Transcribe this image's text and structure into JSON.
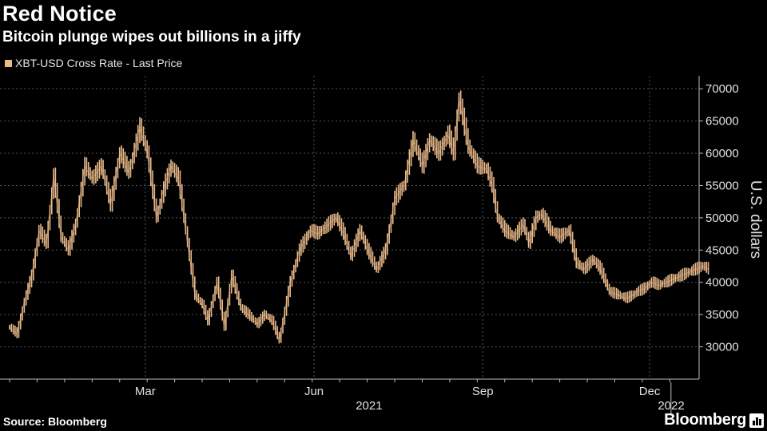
{
  "header": {
    "title": "Red Notice",
    "subtitle": "Bitcoin plunge wipes out billions in a jiffy",
    "legend_label": "XBT-USD Cross Rate - Last Price"
  },
  "footer": {
    "source": "Source: Bloomberg",
    "brand": "Bloomberg"
  },
  "colors": {
    "background": "#000000",
    "series": "#e9b98a",
    "grid": "#555555",
    "text": "#e0e0e0"
  },
  "chart_data": {
    "type": "line",
    "title": "Bitcoin plunge wipes out billions in a jiffy",
    "ylabel": "U.S. dollars",
    "xlabel": "",
    "ylim": [
      25000,
      72000
    ],
    "yticks": [
      30000,
      35000,
      40000,
      45000,
      50000,
      55000,
      60000,
      65000,
      70000
    ],
    "xlim_days": [
      0,
      369
    ],
    "month_ticks": [
      {
        "label": "Mar",
        "day": 74
      },
      {
        "label": "Jun",
        "day": 166
      },
      {
        "label": "Sep",
        "day": 258
      },
      {
        "label": "Dec",
        "day": 349
      }
    ],
    "year_labels": [
      {
        "label": "2021",
        "day": 196
      },
      {
        "label": "2022",
        "day": 382
      }
    ],
    "year_divider_day": 365,
    "series": [
      {
        "name": "XBT-USD Cross Rate - Last Price",
        "x_days": [
          0,
          4,
          8,
          12,
          16,
          20,
          24,
          28,
          32,
          36,
          41,
          45,
          50,
          55,
          60,
          65,
          71,
          75,
          80,
          85,
          88,
          92,
          96,
          101,
          105,
          108,
          113,
          117,
          121,
          126,
          130,
          135,
          139,
          143,
          147,
          153,
          158,
          164,
          168,
          174,
          178,
          182,
          186,
          191,
          195,
          200,
          205,
          210,
          215,
          220,
          225,
          229,
          234,
          239,
          242,
          245,
          250,
          255,
          260,
          263,
          266,
          270,
          275,
          280,
          283,
          287,
          290,
          295,
          300,
          305,
          309,
          313,
          318,
          322,
          327,
          332,
          336,
          340,
          342,
          346,
          350,
          354,
          358,
          362,
          366,
          370,
          374,
          378,
          381
        ],
        "values": [
          33000,
          32000,
          37000,
          41000,
          48000,
          46000,
          56500,
          47000,
          45000,
          49000,
          58000,
          56000,
          58000,
          52000,
          60000,
          57000,
          64000,
          60000,
          50000,
          55500,
          58000,
          56000,
          48000,
          38000,
          36500,
          34000,
          40000,
          33000,
          41000,
          36000,
          35000,
          33500,
          35000,
          34000,
          31000,
          40000,
          45000,
          48000,
          47500,
          49000,
          50000,
          47500,
          44000,
          48000,
          45000,
          42000,
          45000,
          53000,
          55000,
          62000,
          58000,
          62000,
          60000,
          63000,
          60000,
          68500,
          61000,
          58000,
          57500,
          55000,
          50000,
          48000,
          47000,
          49000,
          46000,
          50000,
          50500,
          48000,
          47000,
          48000,
          43000,
          42000,
          43500,
          42000,
          38500,
          38000,
          37500,
          38000,
          38500,
          39000,
          40000,
          39500,
          40000,
          40500,
          41000,
          41500,
          42000,
          42500,
          42000
        ]
      }
    ]
  }
}
